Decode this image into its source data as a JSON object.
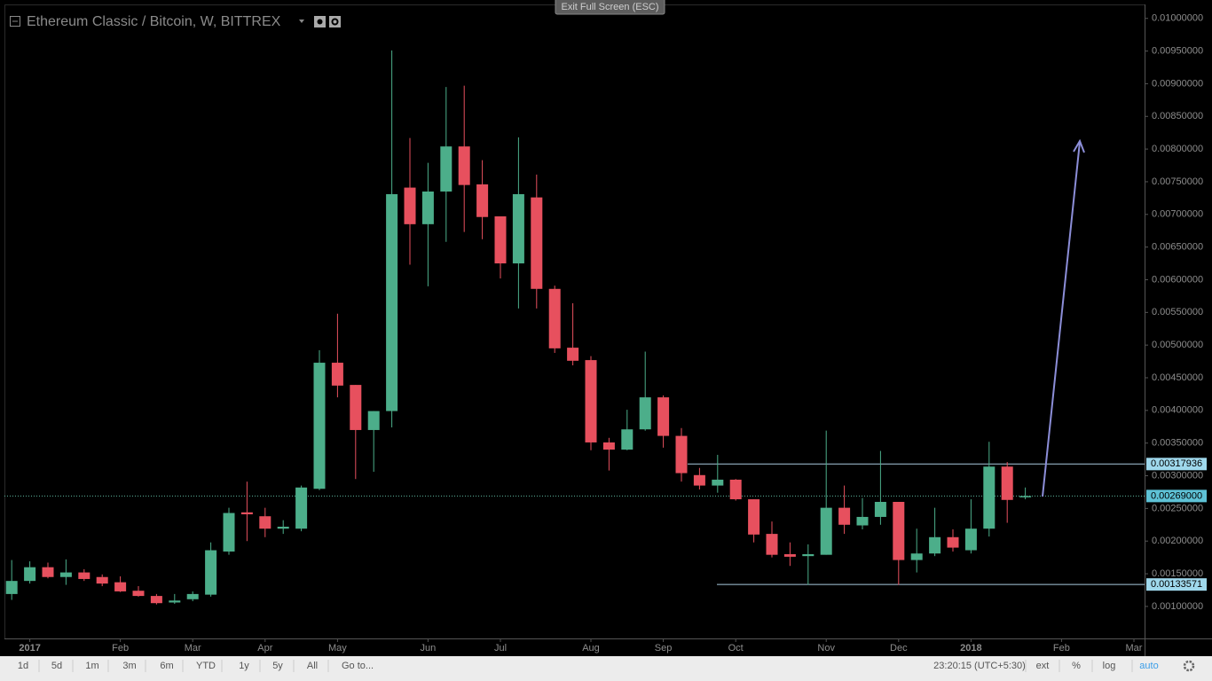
{
  "header": {
    "title": "Ethereum Classic / Bitcoin, W, BITTREX",
    "exit_button": "Exit Full Screen (ESC)"
  },
  "toolbar": {
    "ranges": [
      "1d",
      "5d",
      "1m",
      "3m",
      "6m",
      "YTD",
      "1y",
      "5y",
      "All"
    ],
    "goto": "Go to...",
    "clock": "23:20:15 (UTC+5:30)",
    "options": [
      "ext",
      "%",
      "log",
      "auto"
    ]
  },
  "chart_data": {
    "type": "candlestick",
    "up_color": "#4cae8a",
    "down_color": "#e7505e",
    "grid": false,
    "categories": [
      null,
      "2017",
      null,
      null,
      null,
      null,
      "Feb",
      null,
      null,
      null,
      "Mar",
      null,
      null,
      null,
      "Apr",
      null,
      null,
      null,
      "May",
      null,
      null,
      null,
      null,
      "Jun",
      null,
      null,
      null,
      "Jul",
      null,
      null,
      null,
      null,
      "Aug",
      null,
      null,
      null,
      "Sep",
      null,
      null,
      null,
      "Oct",
      null,
      null,
      null,
      null,
      "Nov",
      null,
      null,
      null,
      "Dec",
      null,
      null,
      null,
      "2018",
      null,
      null,
      null,
      null,
      "Feb",
      null,
      null,
      null,
      "Mar"
    ],
    "open": [
      0.00119,
      0.00139,
      0.0016,
      0.00145,
      0.00152,
      0.00145,
      0.00137,
      0.00124,
      0.00116,
      0.00106,
      0.00111,
      0.00118,
      0.00184,
      0.00244,
      0.00238,
      0.00219,
      0.00219,
      0.0028,
      0.00473,
      0.00439,
      0.0037,
      0.00399,
      0.00741,
      0.00685,
      0.00735,
      0.00804,
      0.00746,
      0.00697,
      0.00625,
      0.00726,
      0.00586,
      0.00496,
      0.00477,
      0.00351,
      0.0034,
      0.00371,
      0.0042,
      0.00361,
      0.00301,
      0.00285,
      0.00294,
      0.00264,
      0.00211,
      0.0018,
      0.00177,
      0.00179,
      0.00251,
      0.00224,
      0.00237,
      0.0026,
      0.00171,
      0.00181,
      0.00206,
      0.00186,
      0.00219,
      0.00314,
      0.00267,
      null,
      null,
      null,
      null,
      null,
      null
    ],
    "high": [
      0.00171,
      0.00169,
      0.00167,
      0.00172,
      0.00157,
      0.00149,
      0.00146,
      0.00131,
      0.00119,
      0.00119,
      0.00123,
      0.00198,
      0.00251,
      0.00291,
      0.00251,
      0.00232,
      0.00285,
      0.00492,
      0.00548,
      0.00439,
      0.00399,
      0.00951,
      0.00817,
      0.00779,
      0.00895,
      0.00897,
      0.00783,
      0.00697,
      0.00818,
      0.00761,
      0.00591,
      0.00564,
      0.00483,
      0.00358,
      0.00401,
      0.0049,
      0.00423,
      0.00373,
      0.00312,
      0.00332,
      0.00295,
      0.00264,
      0.0023,
      0.00198,
      0.00195,
      0.00369,
      0.00285,
      0.00266,
      0.00338,
      0.0026,
      0.00219,
      0.00251,
      0.00218,
      0.00264,
      0.00352,
      0.00321,
      0.00282,
      null,
      null,
      null,
      null,
      null,
      null
    ],
    "low": [
      0.0011,
      0.00135,
      0.00143,
      0.00133,
      0.00139,
      0.00131,
      0.00122,
      0.00115,
      0.00103,
      0.00104,
      0.00108,
      0.00115,
      0.00179,
      0.002,
      0.00206,
      0.00211,
      0.00215,
      0.00278,
      0.0042,
      0.00295,
      0.00306,
      0.00374,
      0.00623,
      0.0059,
      0.00658,
      0.00673,
      0.00662,
      0.00602,
      0.00556,
      0.00556,
      0.00488,
      0.00469,
      0.00339,
      0.00308,
      0.00339,
      0.00369,
      0.00343,
      0.00291,
      0.00279,
      0.00274,
      0.00262,
      0.00198,
      0.00175,
      0.00162,
      0.00133,
      0.00179,
      0.00211,
      0.00218,
      0.00225,
      0.00133,
      0.00152,
      0.00177,
      0.00184,
      0.00181,
      0.00207,
      0.00228,
      0.00264,
      null,
      null,
      null,
      null,
      null,
      null
    ],
    "close": [
      0.00139,
      0.0016,
      0.00145,
      0.00152,
      0.00142,
      0.00135,
      0.00123,
      0.00116,
      0.00105,
      0.00109,
      0.00119,
      0.00186,
      0.00243,
      0.00241,
      0.00219,
      0.00222,
      0.00282,
      0.00473,
      0.00438,
      0.0037,
      0.00399,
      0.00731,
      0.00685,
      0.00735,
      0.00804,
      0.00745,
      0.00696,
      0.00625,
      0.00731,
      0.00586,
      0.00495,
      0.00476,
      0.00351,
      0.0034,
      0.00371,
      0.0042,
      0.00361,
      0.00304,
      0.00285,
      0.00294,
      0.00264,
      0.0021,
      0.00179,
      0.00176,
      0.0018,
      0.00251,
      0.00225,
      0.00237,
      0.0026,
      0.00171,
      0.00181,
      0.00206,
      0.0019,
      0.00219,
      0.00314,
      0.00263,
      0.00269,
      null,
      null,
      null,
      null,
      null,
      null
    ],
    "ylim": [
      0.00051,
      0.0102
    ],
    "yticks": [
      {
        "value": 0.001,
        "label": "0.00100000"
      },
      {
        "value": 0.0015,
        "label": "0.00150000"
      },
      {
        "value": 0.002,
        "label": "0.00200000"
      },
      {
        "value": 0.0025,
        "label": "0.00250000"
      },
      {
        "value": 0.003,
        "label": "0.00300000"
      },
      {
        "value": 0.0035,
        "label": "0.00350000"
      },
      {
        "value": 0.004,
        "label": "0.00400000"
      },
      {
        "value": 0.0045,
        "label": "0.00450000"
      },
      {
        "value": 0.005,
        "label": "0.00500000"
      },
      {
        "value": 0.0055,
        "label": "0.00550000"
      },
      {
        "value": 0.006,
        "label": "0.00600000"
      },
      {
        "value": 0.0065,
        "label": "0.00650000"
      },
      {
        "value": 0.007,
        "label": "0.00700000"
      },
      {
        "value": 0.0075,
        "label": "0.00750000"
      },
      {
        "value": 0.008,
        "label": "0.00800000"
      },
      {
        "value": 0.0085,
        "label": "0.00850000"
      },
      {
        "value": 0.009,
        "label": "0.00900000"
      },
      {
        "value": 0.0095,
        "label": "0.00950000"
      },
      {
        "value": 0.01,
        "label": "0.01000000"
      }
    ],
    "price_lines": [
      {
        "value": 0.00317936,
        "label": "0.00317936"
      },
      {
        "value": 0.00269,
        "label": "0.00269000"
      },
      {
        "value": 0.00133571,
        "label": "0.00133571"
      }
    ]
  }
}
